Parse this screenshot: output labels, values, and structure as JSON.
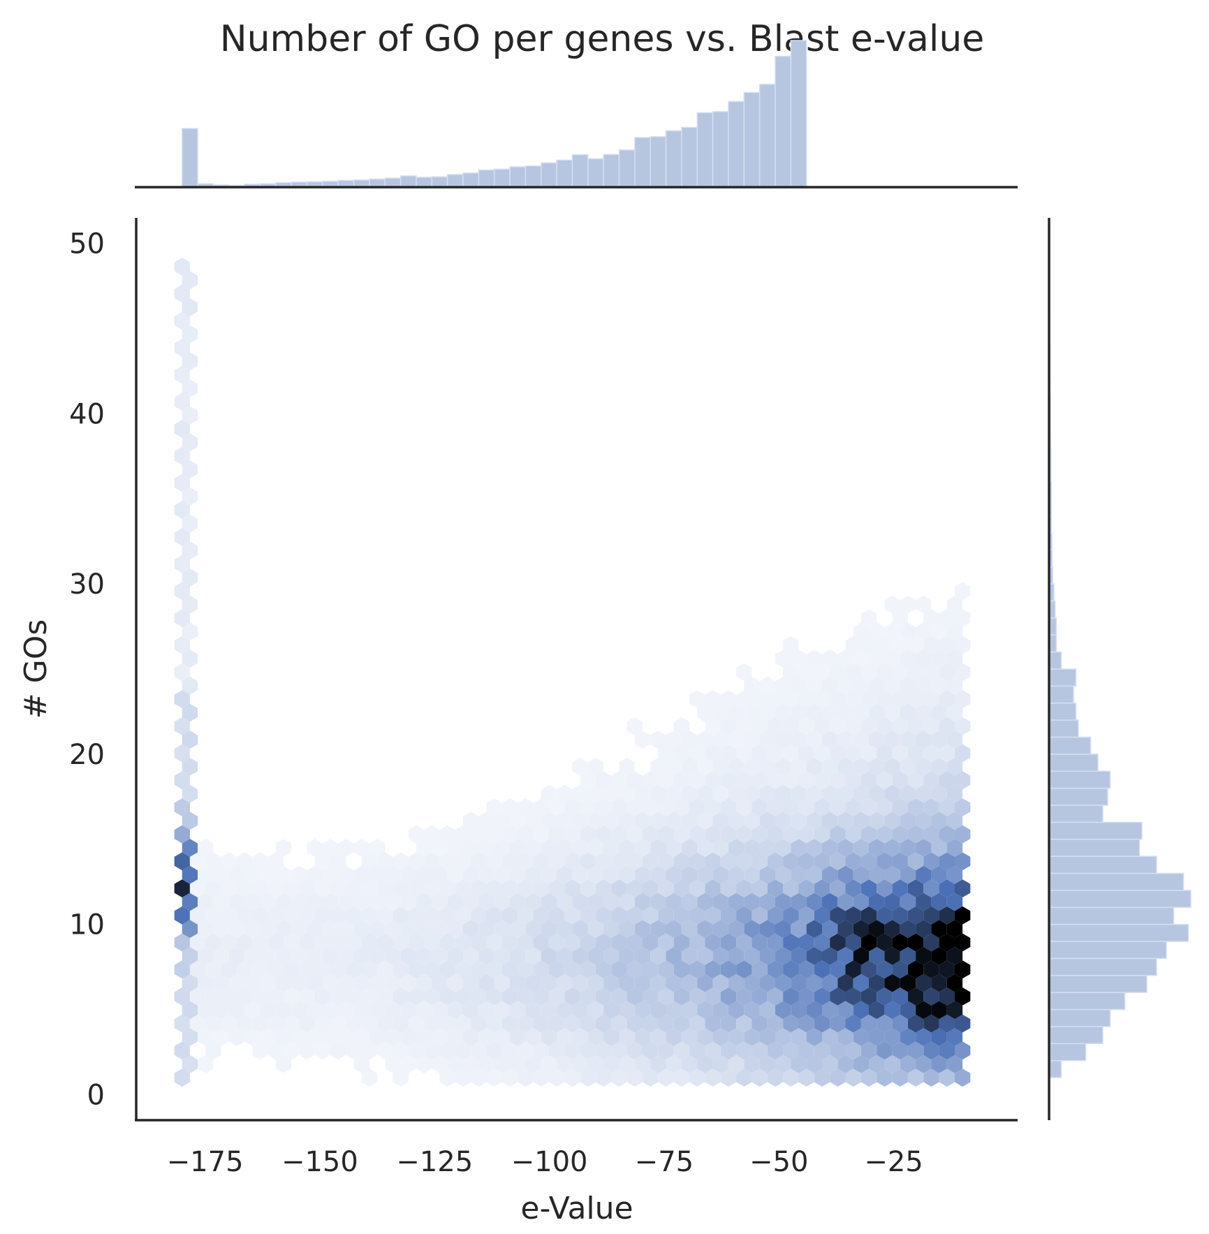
{
  "chart_data": {
    "type": "hexbin",
    "title": "Number of GO per genes vs. Blast e-value",
    "xlabel": "e-Value",
    "ylabel": "# GOs",
    "xlim": [
      -190,
      2
    ],
    "ylim": [
      -1.5,
      51.5
    ],
    "xticks": [
      -175,
      -150,
      -125,
      -100,
      -75,
      -50,
      -25
    ],
    "yticks": [
      0,
      10,
      20,
      30,
      40,
      50
    ],
    "colors": {
      "marginal_fill": "#b6c6e1",
      "marginal_edge": "#d6dff0",
      "hex_low": "#f7f9fd",
      "hex_mid": "#4d72b8",
      "hex_high": "#000000",
      "axis": "#262626"
    },
    "hexbin": {
      "gridsize_x": 50,
      "x_range": [
        -180,
        -10
      ],
      "y_range": [
        1,
        49
      ],
      "description_points": [
        {
          "x": -14,
          "y": 7.5,
          "density": 1.0
        },
        {
          "x": -14,
          "y": 6,
          "density": 0.95
        },
        {
          "x": -18,
          "y": 8,
          "density": 0.85
        },
        {
          "x": -18,
          "y": 9.5,
          "density": 0.8
        },
        {
          "x": -22,
          "y": 7.5,
          "density": 0.75
        },
        {
          "x": -14,
          "y": 12,
          "density": 0.7
        },
        {
          "x": -180,
          "y": 14.5,
          "density": 0.75
        },
        {
          "x": -180,
          "y": 12.5,
          "density": 0.8
        },
        {
          "x": -180,
          "y": 10.5,
          "density": 0.75
        }
      ]
    },
    "x_marginal": {
      "bin_start": -180,
      "bin_width": 3.4,
      "counts": [
        26,
        1.5,
        1,
        0.8,
        1.3,
        1.5,
        2,
        2.2,
        2.4,
        2.6,
        3,
        3.2,
        3.6,
        4,
        5,
        4.4,
        4.6,
        5.6,
        6.3,
        7.6,
        8,
        9,
        9.4,
        10.8,
        12,
        14.4,
        12.6,
        14.5,
        16.5,
        22,
        22.4,
        25,
        26.5,
        33,
        33.5,
        38,
        42,
        45.6,
        58,
        65
      ]
    },
    "y_marginal": {
      "bin_start": 1,
      "bin_width": 1,
      "counts": [
        5,
        15,
        22,
        25,
        31,
        40,
        44,
        48,
        57,
        51,
        58,
        55,
        44,
        37,
        38,
        22,
        24,
        25,
        20,
        17,
        12,
        11,
        10,
        11,
        5,
        3,
        3,
        2.5,
        2,
        1.5,
        1.3,
        1.2,
        1,
        1,
        1,
        0.8,
        0.8,
        0.7,
        0.6,
        0.6,
        0.5,
        0.4,
        0.4,
        0.3,
        0.3,
        0.2,
        0.2,
        0.2
      ]
    }
  }
}
